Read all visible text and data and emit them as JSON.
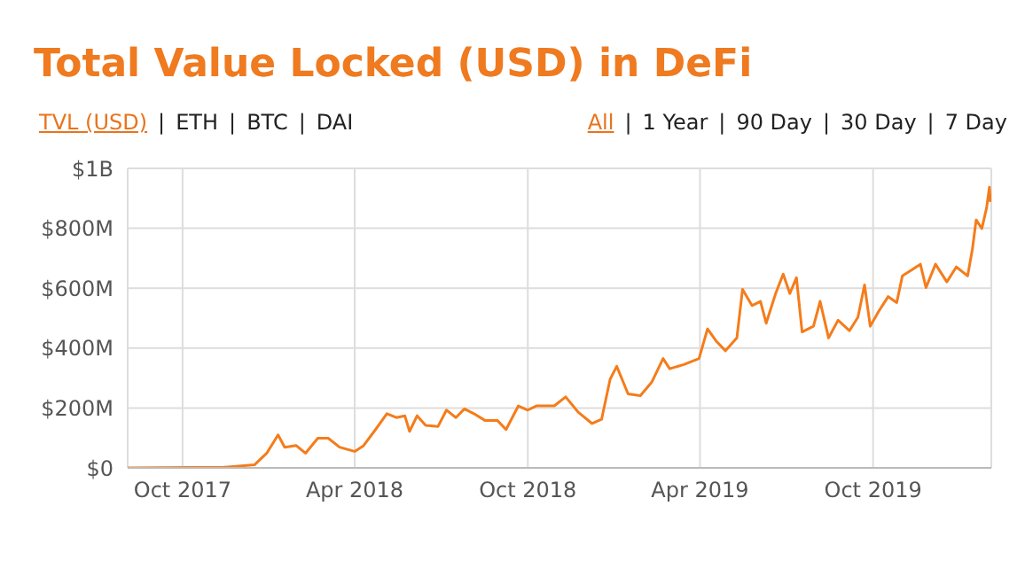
{
  "chart_data": {
    "type": "line",
    "title": "Total Value Locked (USD) in DeFi",
    "annotations": [
      "TVL (USD) | ETH | BTC | DAI",
      "All | 1 Year | 90 Day | 30 Day | 7 Day"
    ],
    "x": [
      "2017-08-04",
      "2017-11-14",
      "2017-12-16",
      "2017-12-29",
      "2018-01-10",
      "2018-01-17",
      "2018-01-29",
      "2018-02-08",
      "2018-02-21",
      "2018-03-04",
      "2018-03-16",
      "2018-04-01",
      "2018-04-10",
      "2018-04-23",
      "2018-05-05",
      "2018-05-15",
      "2018-05-24",
      "2018-05-29",
      "2018-06-06",
      "2018-06-15",
      "2018-06-28",
      "2018-07-07",
      "2018-07-17",
      "2018-07-26",
      "2018-08-05",
      "2018-08-17",
      "2018-08-30",
      "2018-09-08",
      "2018-09-21",
      "2018-10-01",
      "2018-10-10",
      "2018-10-29",
      "2018-11-10",
      "2018-11-23",
      "2018-12-08",
      "2018-12-18",
      "2018-12-27",
      "2019-01-03",
      "2019-01-15",
      "2019-01-28",
      "2019-02-09",
      "2019-02-21",
      "2019-02-28",
      "2019-03-15",
      "2019-03-31",
      "2019-04-09",
      "2019-04-18",
      "2019-04-28",
      "2019-05-10",
      "2019-05-16",
      "2019-05-26",
      "2019-06-04",
      "2019-06-10",
      "2019-06-20",
      "2019-06-28",
      "2019-07-05",
      "2019-07-12",
      "2019-07-18",
      "2019-07-30",
      "2019-08-06",
      "2019-08-15",
      "2019-08-25",
      "2019-09-06",
      "2019-09-15",
      "2019-09-22",
      "2019-09-28",
      "2019-10-07",
      "2019-10-17",
      "2019-10-26",
      "2019-11-01",
      "2019-11-11",
      "2019-11-20",
      "2019-11-26",
      "2019-12-06",
      "2019-12-18",
      "2019-12-28",
      "2020-01-09",
      "2020-01-14",
      "2020-01-18",
      "2020-01-24",
      "2020-01-29",
      "2020-02-01",
      "2020-02-02"
    ],
    "series": [
      {
        "color": "#f57c1a",
        "values": [
          0,
          2000000,
          10000000,
          49000000,
          110000000,
          69000000,
          75000000,
          49000000,
          99000000,
          99000000,
          69000000,
          55000000,
          73000000,
          128000000,
          181000000,
          168000000,
          174000000,
          122000000,
          174000000,
          142000000,
          138000000,
          193000000,
          168000000,
          197000000,
          181000000,
          158000000,
          158000000,
          128000000,
          207000000,
          193000000,
          207000000,
          207000000,
          237000000,
          187000000,
          148000000,
          162000000,
          296000000,
          339000000,
          247000000,
          241000000,
          286000000,
          365000000,
          331000000,
          345000000,
          365000000,
          464000000,
          424000000,
          391000000,
          434000000,
          596000000,
          542000000,
          556000000,
          483000000,
          582000000,
          647000000,
          582000000,
          635000000,
          454000000,
          473000000,
          556000000,
          434000000,
          493000000,
          458000000,
          503000000,
          611000000,
          473000000,
          523000000,
          572000000,
          552000000,
          641000000,
          661000000,
          680000000,
          602000000,
          680000000,
          621000000,
          671000000,
          641000000,
          730000000,
          828000000,
          799000000,
          868000000,
          937000000,
          888000000
        ]
      }
    ],
    "xlim": [
      "2017-08-04",
      "2020-02-03"
    ],
    "xticks": [
      {
        "value": "2017-10-01",
        "label": "Oct 2017"
      },
      {
        "value": "2018-04-01",
        "label": "Apr 2018"
      },
      {
        "value": "2018-10-01",
        "label": "Oct 2018"
      },
      {
        "value": "2019-04-01",
        "label": "Apr 2019"
      },
      {
        "value": "2019-10-01",
        "label": "Oct 2019"
      }
    ],
    "ylim": [
      0,
      1000000000
    ],
    "yticks": [
      {
        "value": 0,
        "label": "$0"
      },
      {
        "value": 200000000,
        "label": "$200M"
      },
      {
        "value": 400000000,
        "label": "$400M"
      },
      {
        "value": 600000000,
        "label": "$600M"
      },
      {
        "value": 800000000,
        "label": "$800M"
      },
      {
        "value": 1000000000,
        "label": "$1B"
      }
    ],
    "grid": true,
    "legend": false,
    "marker": "none",
    "line_style": "solid"
  }
}
